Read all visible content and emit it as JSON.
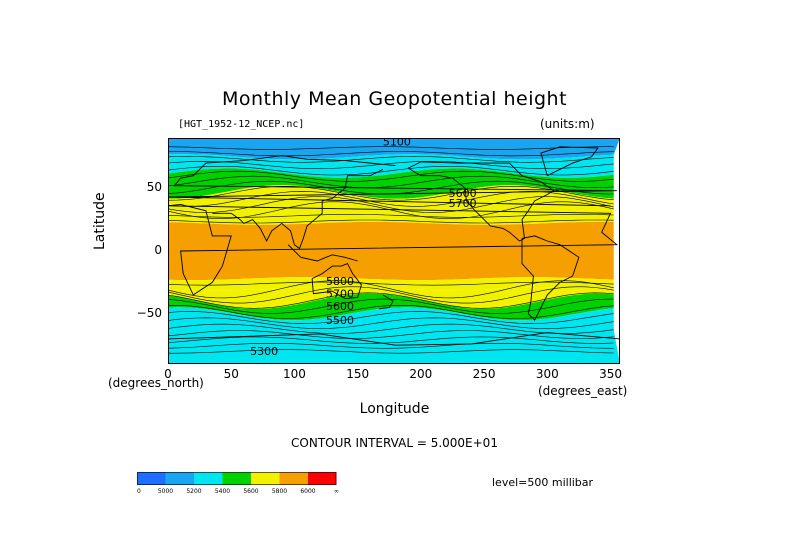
{
  "chart_data": {
    "type": "heatmap",
    "title": "Monthly Mean Geopotential height",
    "subtitle": "[HGT_1952-12_NCEP.nc]",
    "units_label": "(units:m)",
    "xlabel": "Longitude",
    "ylabel": "Latitude",
    "x_unit_label": "(degrees_east)",
    "y_unit_label": "(degrees_north)",
    "xlim": [
      0,
      357.5
    ],
    "ylim": [
      -90,
      90
    ],
    "x_ticks": [
      "0",
      "50",
      "100",
      "150",
      "200",
      "250",
      "300",
      "350"
    ],
    "y_ticks": [
      "50",
      "0",
      "−50"
    ],
    "contour_interval": "CONTOUR INTERVAL = 5.000E+01",
    "level": "level=500 millibar",
    "contour_labels": [
      {
        "text": "5100",
        "lon": 170,
        "lat": 84
      },
      {
        "text": "5300",
        "lon": 65,
        "lat": -83
      },
      {
        "text": "5800",
        "lon": 125,
        "lat": -27
      },
      {
        "text": "5700",
        "lon": 125,
        "lat": -37
      },
      {
        "text": "5600",
        "lon": 125,
        "lat": -47
      },
      {
        "text": "5500",
        "lon": 125,
        "lat": -58
      },
      {
        "text": "5600",
        "lon": 222,
        "lat": 43
      },
      {
        "text": "5700",
        "lon": 222,
        "lat": 35
      }
    ],
    "zonal_band_edges_lat": [
      {
        "lat": 90,
        "value": 5100
      },
      {
        "lat": 75,
        "value": 5200
      },
      {
        "lat": 62,
        "value": 5400
      },
      {
        "lat": 47,
        "value": 5600
      },
      {
        "lat": 38,
        "value": 5700
      },
      {
        "lat": 22,
        "value": 5800
      },
      {
        "lat": -22,
        "value": 5800
      },
      {
        "lat": -30,
        "value": 5700
      },
      {
        "lat": -40,
        "value": 5600
      },
      {
        "lat": -50,
        "value": 5400
      },
      {
        "lat": -62,
        "value": 5200
      },
      {
        "lat": -90,
        "value": 5300
      }
    ],
    "colorbar": {
      "colors": [
        "#1e6eff",
        "#1aa5f0",
        "#00e6f0",
        "#00d200",
        "#f2f200",
        "#f5a000",
        "#ff0000"
      ],
      "labels": [
        "0",
        "5000",
        "5200",
        "5400",
        "5600",
        "5800",
        "6000",
        "∞"
      ]
    }
  }
}
